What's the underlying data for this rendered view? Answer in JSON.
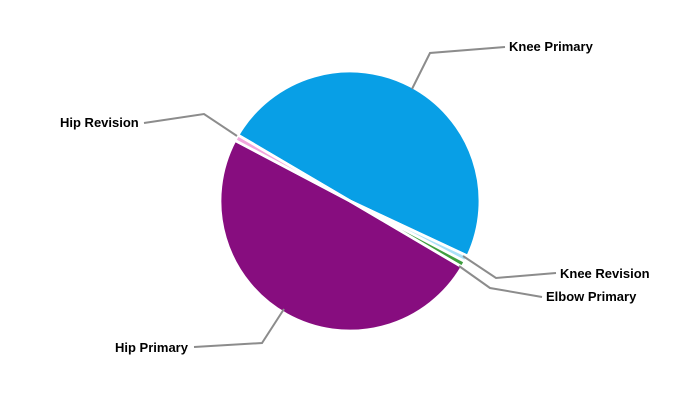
{
  "chart_data": {
    "type": "pie",
    "title": "",
    "legend_position": "none",
    "label_style": "external-leader-lines",
    "direction": "clockwise",
    "start_angle_deg": -59.5,
    "slices": [
      {
        "label": "Knee Primary",
        "value_pct": 48.5,
        "color": "#089fe6"
      },
      {
        "label": "Knee Revision",
        "value_pct": 0.75,
        "color": "#a9e1f7"
      },
      {
        "label": "Elbow Primary",
        "value_pct": 0.75,
        "color": "#3f9e3f"
      },
      {
        "label": "Hip Primary",
        "value_pct": 49.25,
        "color": "#870d7f"
      },
      {
        "label": "Hip Revision",
        "value_pct": 0.75,
        "color": "#f2a5dd"
      }
    ],
    "slice_border_color": "#ffffff",
    "leader_line_color": "#8c8c8c",
    "label_text_color": "#000000",
    "background_color": "#ffffff"
  }
}
